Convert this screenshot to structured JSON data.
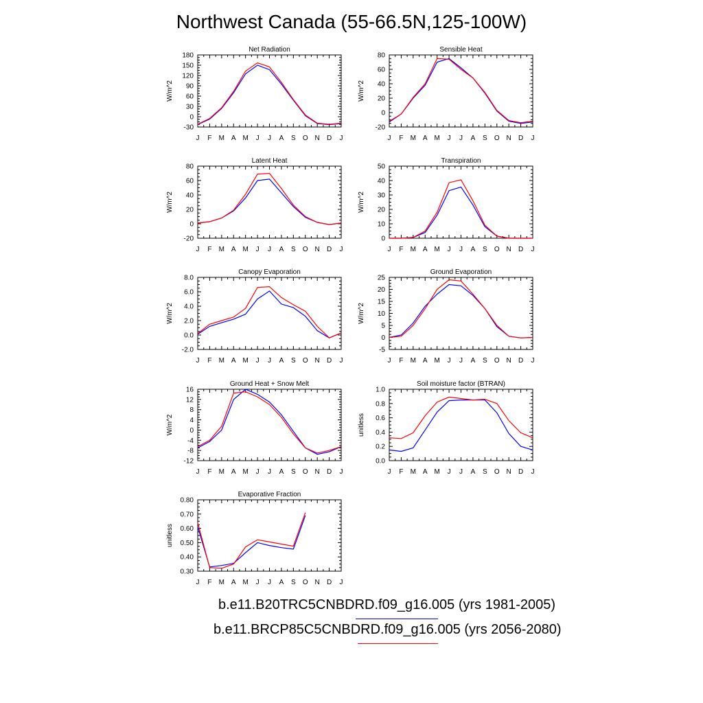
{
  "title": "Northwest Canada (55-66.5N,125-100W)",
  "month_labels": [
    "J",
    "F",
    "M",
    "A",
    "M",
    "J",
    "J",
    "A",
    "S",
    "O",
    "N",
    "D",
    "J"
  ],
  "series_colors": {
    "historical": "#0000ff",
    "future": "#ff0000"
  },
  "legend": [
    {
      "label": "b.e11.B20TRC5CNBDRD.f09_g16.005 (yrs 1981-2005)",
      "color": "#0000ff"
    },
    {
      "label": "b.e11.BRCP85C5CNBDRD.f09_g16.005 (yrs 2056-2080)",
      "color": "#ff0000"
    }
  ],
  "chart_data": [
    {
      "type": "line",
      "title": "Net Radiation",
      "ylabel": "W/m^2",
      "ylim": [
        -30,
        180
      ],
      "yticks": [
        "-30",
        "0",
        "30",
        "60",
        "90",
        "120",
        "150",
        "180"
      ],
      "series": [
        {
          "key": "historical",
          "values": [
            -23,
            -7,
            24,
            70,
            125,
            150,
            137,
            95,
            48,
            3,
            -20,
            -23,
            -20
          ]
        },
        {
          "key": "future",
          "values": [
            -22,
            -5,
            26,
            74,
            133,
            157,
            145,
            100,
            50,
            5,
            -19,
            -22,
            -19
          ]
        }
      ]
    },
    {
      "type": "line",
      "title": "Sensible Heat",
      "ylabel": "W/m^2",
      "ylim": [
        -20,
        80
      ],
      "yticks": [
        "-20",
        "0",
        "20",
        "40",
        "60",
        "80"
      ],
      "series": [
        {
          "key": "historical",
          "values": [
            -13,
            -2,
            20,
            38,
            70,
            75,
            62,
            48,
            27,
            2,
            -12,
            -15,
            -13
          ]
        },
        {
          "key": "future",
          "values": [
            -12,
            -2,
            21,
            40,
            75,
            74,
            60,
            48,
            28,
            3,
            -11,
            -14,
            -12
          ]
        }
      ]
    },
    {
      "type": "line",
      "title": "Latent Heat",
      "ylabel": "W/m^2",
      "ylim": [
        -20,
        80
      ],
      "yticks": [
        "-20",
        "0",
        "20",
        "40",
        "60",
        "80"
      ],
      "series": [
        {
          "key": "historical",
          "values": [
            1,
            3,
            8,
            18,
            36,
            60,
            62,
            43,
            24,
            9,
            2,
            -1,
            1
          ]
        },
        {
          "key": "future",
          "values": [
            1,
            3,
            8,
            19,
            41,
            69,
            70,
            49,
            26,
            10,
            2,
            -1,
            1
          ]
        }
      ]
    },
    {
      "type": "line",
      "title": "Transpiration",
      "ylabel": "W/m^2",
      "ylim": [
        0,
        50
      ],
      "yticks": [
        "0",
        "10",
        "20",
        "30",
        "40",
        "50"
      ],
      "series": [
        {
          "key": "historical",
          "values": [
            0,
            0,
            0.5,
            4,
            16,
            33,
            35.5,
            23,
            8,
            1.5,
            0,
            0,
            0
          ]
        },
        {
          "key": "future",
          "values": [
            0,
            0,
            0.5,
            5,
            18,
            38.5,
            40.5,
            26,
            9,
            1.5,
            0,
            0,
            0
          ]
        }
      ]
    },
    {
      "type": "line",
      "title": "Canopy Evaporation",
      "ylabel": "W/m^2",
      "ylim": [
        -2,
        8
      ],
      "yticks": [
        "-2.0",
        "0.0",
        "2.0",
        "4.0",
        "6.0",
        "8.0"
      ],
      "series": [
        {
          "key": "historical",
          "values": [
            0.1,
            1.2,
            1.7,
            2.2,
            2.9,
            5.0,
            6.1,
            4.3,
            3.8,
            2.6,
            0.6,
            -0.4,
            0.3
          ]
        },
        {
          "key": "future",
          "values": [
            0.2,
            1.5,
            2.0,
            2.5,
            3.7,
            6.6,
            6.7,
            5.2,
            4.2,
            3.3,
            1.2,
            -0.4,
            0.3
          ]
        }
      ]
    },
    {
      "type": "line",
      "title": "Ground Evaporation",
      "ylabel": "W/m^2",
      "ylim": [
        -5,
        25
      ],
      "yticks": [
        "-5",
        "0",
        "5",
        "10",
        "15",
        "20",
        "25"
      ],
      "series": [
        {
          "key": "historical",
          "values": [
            0,
            1,
            6,
            13,
            18,
            22,
            21.5,
            17.5,
            12,
            4.5,
            0.5,
            -0.2,
            0
          ]
        },
        {
          "key": "future",
          "values": [
            0,
            0.5,
            5,
            12,
            20,
            24,
            23.5,
            18,
            12,
            5,
            0.5,
            -0.2,
            0
          ]
        }
      ]
    },
    {
      "type": "line",
      "title": "Ground Heat + Snow Melt",
      "ylabel": "W/m^2",
      "ylim": [
        -12,
        16
      ],
      "yticks": [
        "-12",
        "-8",
        "-4",
        "0",
        "4",
        "8",
        "12",
        "16"
      ],
      "series": [
        {
          "key": "historical",
          "values": [
            -7,
            -4.5,
            0,
            12,
            16,
            14,
            11,
            6,
            -0.5,
            -7,
            -9.5,
            -8.5,
            -6.5
          ]
        },
        {
          "key": "future",
          "values": [
            -6.5,
            -4,
            1.5,
            14.5,
            15,
            13,
            10,
            5,
            -1.5,
            -7,
            -9,
            -8,
            -6.5
          ]
        }
      ]
    },
    {
      "type": "line",
      "title": "Soil moisture factor (BTRAN)",
      "ylabel": "unitless",
      "ylim": [
        0,
        1
      ],
      "yticks": [
        "0.0",
        "0.2",
        "0.4",
        "0.6",
        "0.8",
        "1.0"
      ],
      "series": [
        {
          "key": "historical",
          "values": [
            0.15,
            0.13,
            0.18,
            0.43,
            0.68,
            0.84,
            0.85,
            0.85,
            0.85,
            0.67,
            0.38,
            0.2,
            0.15
          ]
        },
        {
          "key": "future",
          "values": [
            0.32,
            0.31,
            0.39,
            0.63,
            0.82,
            0.89,
            0.87,
            0.85,
            0.86,
            0.8,
            0.56,
            0.39,
            0.32
          ]
        }
      ]
    },
    {
      "type": "line",
      "title": "Evaporative Fraction",
      "ylabel": "unitless",
      "ylim": [
        0.3,
        0.8
      ],
      "yticks": [
        "0.30",
        "0.40",
        "0.50",
        "0.60",
        "0.70",
        "0.80"
      ],
      "series": [
        {
          "key": "historical",
          "values": [
            0.61,
            0.33,
            0.34,
            0.355,
            0.43,
            0.5,
            0.48,
            0.465,
            0.455,
            0.69
          ]
        },
        {
          "key": "future",
          "values": [
            0.64,
            0.325,
            0.32,
            0.35,
            0.47,
            0.52,
            0.505,
            0.49,
            0.475,
            0.71
          ]
        }
      ]
    }
  ]
}
